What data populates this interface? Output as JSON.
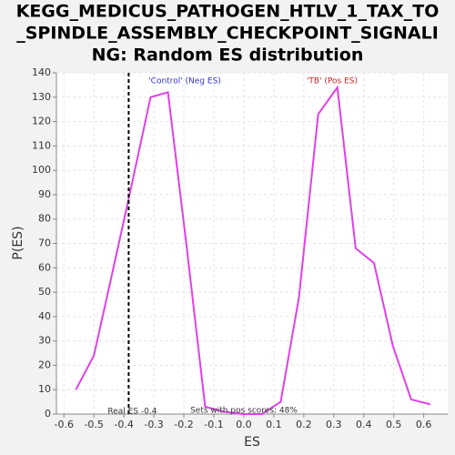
{
  "chart_data": {
    "type": "line",
    "title": [
      "KEGG_MEDICUS_PATHOGEN_HTLV_1_TAX_TO",
      "_SPINDLE_ASSEMBLY_CHECKPOINT_SIGNALI",
      "NG: Random ES distribution"
    ],
    "xlabel": "ES",
    "ylabel": "P(ES)",
    "x": [
      -0.56,
      -0.5,
      -0.442,
      -0.381,
      -0.311,
      -0.253,
      -0.19,
      -0.129,
      -0.068,
      -0.004,
      0.06,
      0.123,
      0.184,
      0.248,
      0.312,
      0.373,
      0.434,
      0.497,
      0.558,
      0.622
    ],
    "series": [
      {
        "name": "P(ES)",
        "color": "#e040e8",
        "values": [
          10,
          24,
          56,
          90,
          130,
          132,
          68,
          3,
          1,
          0,
          0,
          5,
          48,
          123,
          134,
          68,
          62,
          28,
          6,
          4
        ]
      }
    ],
    "xlim": [
      -0.625,
      0.68
    ],
    "ylim": [
      0,
      140
    ],
    "xticks": [
      -0.6,
      -0.5,
      -0.4,
      -0.3,
      -0.2,
      -0.1,
      {
        "value": 0,
        "label": "0.0"
      },
      0.1,
      0.2,
      0.3,
      0.4,
      0.5,
      0.6
    ],
    "yticks": [
      0,
      10,
      20,
      30,
      40,
      50,
      60,
      70,
      80,
      90,
      100,
      110,
      120,
      130,
      140
    ],
    "grid": true,
    "real_es": -0.384,
    "annotations": {
      "neg": "'Control' (Neg ES)",
      "pos": "'TB' (Pos ES)",
      "real_es": "Real ES -0.4",
      "pos_scores": "Sets with pos scores: 48%"
    }
  }
}
